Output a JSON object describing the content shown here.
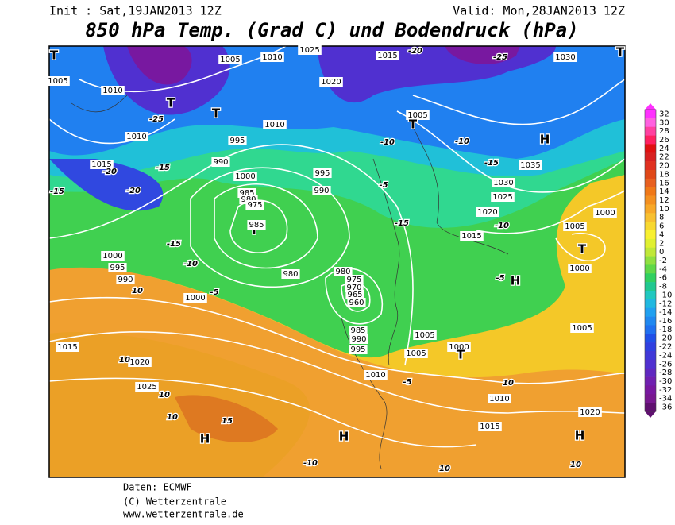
{
  "header": {
    "init": "Init : Sat,19JAN2013 12Z",
    "valid": "Valid: Mon,28JAN2013 12Z",
    "title": "850 hPa Temp. (Grad C) und Bodendruck (hPa)"
  },
  "map_labels": [
    "1005",
    "1010",
    "1025",
    "1015",
    "-20",
    "-25",
    "1030",
    "1010",
    "1005",
    "-25",
    "1010",
    "T",
    "T",
    "1020",
    "-15",
    "1015",
    "-20",
    "-15",
    "-20",
    "1010",
    "995",
    "990",
    "1000",
    "985",
    "980",
    "975",
    "T",
    "985",
    "995",
    "990",
    "-10",
    "1005",
    "T",
    "-5",
    "-15",
    "1015",
    "-10",
    "-15",
    "1035",
    "H",
    "1030",
    "1025",
    "1020",
    "-10",
    "1005",
    "1000",
    "T",
    "1000",
    "-5",
    "H",
    "1000",
    "995",
    "990",
    "1000",
    "-5",
    "-10",
    "-15",
    "980",
    "980",
    "975",
    "970",
    "965",
    "960",
    "985",
    "990",
    "995",
    "1015",
    "1020",
    "1010",
    "1005",
    "1005",
    "1000",
    "T",
    "1005",
    "1010",
    "1015",
    "1020",
    "1025",
    "15",
    "10",
    "10",
    "10",
    "10",
    "H",
    "H",
    "H",
    "-10",
    "10",
    "10",
    "-5",
    "10",
    "T",
    "T"
  ],
  "colorbar": {
    "ticks": [
      32,
      30,
      28,
      26,
      24,
      22,
      20,
      18,
      16,
      14,
      12,
      10,
      8,
      6,
      4,
      2,
      0,
      -2,
      -4,
      -6,
      -8,
      -10,
      -12,
      -14,
      -16,
      -18,
      -20,
      -22,
      -24,
      -26,
      -28,
      -30,
      -32,
      -34,
      -36
    ],
    "colors": [
      "#ff30ff",
      "#ff60e0",
      "#ff40a0",
      "#ff2060",
      "#e01010",
      "#d82020",
      "#e03020",
      "#e04818",
      "#e86020",
      "#f07818",
      "#f49020",
      "#f8a828",
      "#f8c030",
      "#f8d830",
      "#f8f030",
      "#e0f030",
      "#c0e838",
      "#90e040",
      "#60d848",
      "#30d060",
      "#20c890",
      "#20c8c0",
      "#20b8e0",
      "#20a0f0",
      "#2088f0",
      "#2070f0",
      "#2050e8",
      "#3040e0",
      "#4038d8",
      "#5030d0",
      "#6028c0",
      "#7020b0",
      "#7818a0",
      "#781890",
      "#601070"
    ]
  },
  "footer": {
    "line1": "Daten: ECMWF",
    "line2": "(C) Wetterzentrale",
    "line3": "www.wetterzentrale.de"
  }
}
